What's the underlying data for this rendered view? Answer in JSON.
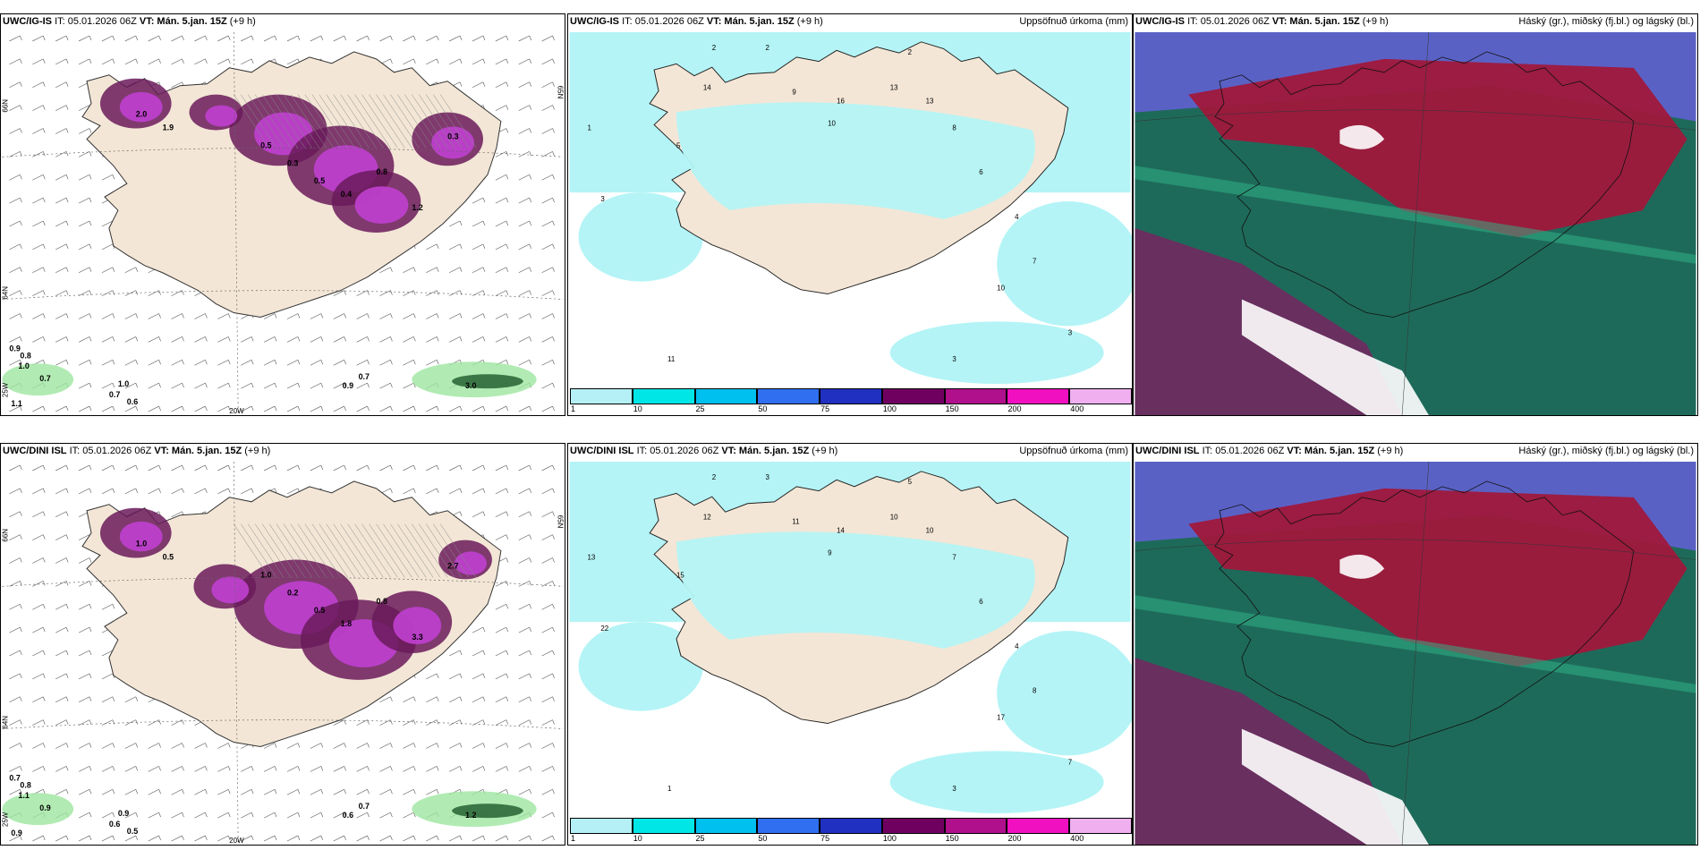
{
  "rows": [
    {
      "model": "UWC/IG-IS",
      "panels": [
        {
          "it": "IT: 05.01.2026 06Z",
          "vt_label": "VT:",
          "vt_value": "Mán. 5.jan. 15Z",
          "lead": "(+9 h)",
          "right": "",
          "map_labels": [
            "1.1",
            "0.9",
            "0.8",
            "1.0",
            "0.7",
            "0.7",
            "0.6",
            "1.0",
            "0.9",
            "0.7",
            "0.5",
            "0.3",
            "0.5",
            "0.4",
            "0.8",
            "1.2",
            "0.3",
            "3.0",
            "2.0",
            "1.9"
          ]
        },
        {
          "it": "IT: 05.01.2026 06Z",
          "vt_label": "VT:",
          "vt_value": "Mán. 5.jan. 15Z",
          "lead": "(+9 h)",
          "right": "Uppsöfnuð úrkoma (mm)",
          "map_labels": [
            "2",
            "2",
            "2",
            "1",
            "3",
            "5",
            "14",
            "13",
            "16",
            "10",
            "9",
            "13",
            "8",
            "6",
            "4",
            "7",
            "3",
            "11",
            "10",
            "3"
          ]
        },
        {
          "it": "IT: 05.01.2026 06Z",
          "vt_label": "VT:",
          "vt_value": "Mán. 5.jan. 15Z",
          "lead": "(+9 h)",
          "right": "Háský (gr.), miðský (fj.bl.) og lágský (bl.)",
          "map_labels": []
        }
      ],
      "axis_labels": {
        "lat_left": "66N",
        "lat_left2": "64N",
        "lon_mid": "20W",
        "lon_left": "25W",
        "lat_right": "65N"
      }
    },
    {
      "model": "UWC/DINI ISL",
      "panels": [
        {
          "it": "IT: 05.01.2026 06Z",
          "vt_label": "VT:",
          "vt_value": "Mán. 5.jan. 15Z",
          "lead": "(+9 h)",
          "right": "",
          "map_labels": [
            "0.9",
            "0.7",
            "0.8",
            "1.1",
            "0.9",
            "0.6",
            "0.5",
            "0.9",
            "0.6",
            "0.7",
            "1.0",
            "0.2",
            "0.5",
            "1.8",
            "0.8",
            "3.3",
            "2.7",
            "1.2",
            "1.0",
            "0.5"
          ]
        },
        {
          "it": "IT: 05.01.2026 06Z",
          "vt_label": "VT:",
          "vt_value": "Mán. 5.jan. 15Z",
          "lead": "(+9 h)",
          "right": "Uppsöfnuð úrkoma (mm)",
          "map_labels": [
            "2",
            "3",
            "5",
            "13",
            "22",
            "15",
            "12",
            "10",
            "14",
            "9",
            "11",
            "10",
            "7",
            "6",
            "4",
            "8",
            "3",
            "1",
            "17",
            "7"
          ]
        },
        {
          "it": "IT: 05.01.2026 06Z",
          "vt_label": "VT:",
          "vt_value": "Mán. 5.jan. 15Z",
          "lead": "(+9 h)",
          "right": "Háský (gr.), miðský (fj.bl.) og lágský (bl.)",
          "map_labels": []
        }
      ],
      "axis_labels": {
        "lat_left": "66N",
        "lat_left2": "64N",
        "lon_mid": "20W",
        "lon_left": "25W",
        "lat_right": "65N"
      }
    }
  ],
  "colorbar": {
    "ticks": [
      "1",
      "10",
      "25",
      "50",
      "75",
      "100",
      "150",
      "200",
      "400"
    ],
    "colors": [
      "#b4f0f6",
      "#00e6e6",
      "#00c0f0",
      "#3070f0",
      "#2030c0",
      "#700060",
      "#b0108c",
      "#f010c0",
      "#f0b0f0"
    ]
  },
  "colors": {
    "land": "#f3e6d6",
    "snow_purple": "#c040d0",
    "snow_dark": "#6a1a5a",
    "rain_green": "#9ee6a0",
    "precip_cyan": "#b4f4f6",
    "cloud_high": "#a0183c",
    "cloud_mid": "#1e6a5a",
    "cloud_low": "#6060d0"
  }
}
